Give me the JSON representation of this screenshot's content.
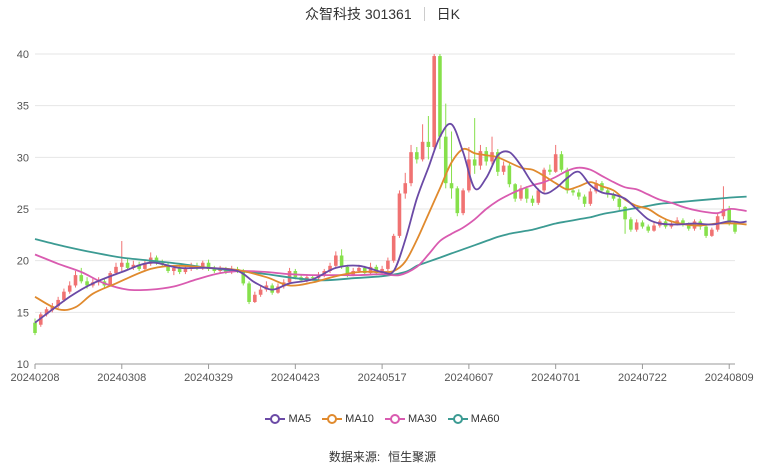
{
  "header": {
    "stock_name": "众智科技 301361",
    "period": "日K"
  },
  "source": {
    "label": "数据来源:",
    "value": "恒生聚源"
  },
  "chart_data": {
    "type": "candlestick",
    "title": "众智科技 301361",
    "ylim": [
      10,
      40
    ],
    "y_ticks": [
      10,
      15,
      20,
      25,
      30,
      35,
      40
    ],
    "x_ticks": [
      {
        "index": 0,
        "label": "20240208"
      },
      {
        "index": 15,
        "label": "20240308"
      },
      {
        "index": 30,
        "label": "20240329"
      },
      {
        "index": 45,
        "label": "20240423"
      },
      {
        "index": 60,
        "label": "20240517"
      },
      {
        "index": 75,
        "label": "20240607"
      },
      {
        "index": 90,
        "label": "20240701"
      },
      {
        "index": 105,
        "label": "20240722"
      },
      {
        "index": 120,
        "label": "20240809"
      }
    ],
    "colors": {
      "up": "#f07272",
      "down": "#86e04b",
      "ma5": "#6b4aa6",
      "ma10": "#e08a2e",
      "ma30": "#d95bb0",
      "ma60": "#3c9b93"
    },
    "candles": [
      [
        14.0,
        13.0,
        14.4,
        12.8
      ],
      [
        13.8,
        14.8,
        15.0,
        13.6
      ],
      [
        14.8,
        15.3,
        15.5,
        14.6
      ],
      [
        15.2,
        15.6,
        15.9,
        15.0
      ],
      [
        15.6,
        16.2,
        16.5,
        15.4
      ],
      [
        16.2,
        17.0,
        17.3,
        16.0
      ],
      [
        17.0,
        17.6,
        18.0,
        16.8
      ],
      [
        17.6,
        18.6,
        19.0,
        17.4
      ],
      [
        18.6,
        18.0,
        19.3,
        17.8
      ],
      [
        18.0,
        17.6,
        18.4,
        17.3
      ],
      [
        17.6,
        17.9,
        18.3,
        17.4
      ],
      [
        17.9,
        18.0,
        18.4,
        17.6
      ],
      [
        18.0,
        17.6,
        18.3,
        17.3
      ],
      [
        17.6,
        18.8,
        19.0,
        17.5
      ],
      [
        18.8,
        19.4,
        19.8,
        18.6
      ],
      [
        19.4,
        19.8,
        21.9,
        19.0
      ],
      [
        19.8,
        19.3,
        20.2,
        19.1
      ],
      [
        19.3,
        19.6,
        20.0,
        19.1
      ],
      [
        19.6,
        19.2,
        19.9,
        19.0
      ],
      [
        19.2,
        19.7,
        20.0,
        19.0
      ],
      [
        19.7,
        20.3,
        20.8,
        19.5
      ],
      [
        20.3,
        19.8,
        20.5,
        19.6
      ],
      [
        19.8,
        19.6,
        20.1,
        19.4
      ],
      [
        19.6,
        19.0,
        19.8,
        18.8
      ],
      [
        19.0,
        19.3,
        19.6,
        18.6
      ],
      [
        19.3,
        18.9,
        19.6,
        18.7
      ],
      [
        18.9,
        19.2,
        19.5,
        18.7
      ],
      [
        19.2,
        19.5,
        19.8,
        19.0
      ],
      [
        19.5,
        19.3,
        19.8,
        19.1
      ],
      [
        19.3,
        19.8,
        20.0,
        19.1
      ],
      [
        19.8,
        19.2,
        20.1,
        19.0
      ],
      [
        19.2,
        19.0,
        19.5,
        18.8
      ],
      [
        19.0,
        19.2,
        19.5,
        18.8
      ],
      [
        19.2,
        18.9,
        19.4,
        18.7
      ],
      [
        18.9,
        19.2,
        19.5,
        18.7
      ],
      [
        19.2,
        19.0,
        19.4,
        18.8
      ],
      [
        19.0,
        17.8,
        19.2,
        17.6
      ],
      [
        17.8,
        16.0,
        18.0,
        15.8
      ],
      [
        16.0,
        16.7,
        17.0,
        15.9
      ],
      [
        16.7,
        17.2,
        17.5,
        16.5
      ],
      [
        17.2,
        17.6,
        18.0,
        17.0
      ],
      [
        17.6,
        16.9,
        17.8,
        16.7
      ],
      [
        16.9,
        17.5,
        17.8,
        16.8
      ],
      [
        17.5,
        17.9,
        18.2,
        17.3
      ],
      [
        17.9,
        19.0,
        19.3,
        17.8
      ],
      [
        19.0,
        18.4,
        19.2,
        18.2
      ],
      [
        18.4,
        18.1,
        18.6,
        17.9
      ],
      [
        18.1,
        18.4,
        18.7,
        17.9
      ],
      [
        18.4,
        18.3,
        18.6,
        18.1
      ],
      [
        18.3,
        18.6,
        18.9,
        18.1
      ],
      [
        18.6,
        19.0,
        19.2,
        18.4
      ],
      [
        19.0,
        19.5,
        19.8,
        18.8
      ],
      [
        19.5,
        20.5,
        20.9,
        19.3
      ],
      [
        20.5,
        19.4,
        21.1,
        19.2
      ],
      [
        19.4,
        18.6,
        19.6,
        18.4
      ],
      [
        18.6,
        19.0,
        19.3,
        18.5
      ],
      [
        19.0,
        19.3,
        19.6,
        18.8
      ],
      [
        19.3,
        18.8,
        19.5,
        18.6
      ],
      [
        18.8,
        19.4,
        19.8,
        18.7
      ],
      [
        19.4,
        18.8,
        19.6,
        18.6
      ],
      [
        18.8,
        19.2,
        19.5,
        18.7
      ],
      [
        19.2,
        20.0,
        20.3,
        19.0
      ],
      [
        20.0,
        22.4,
        22.6,
        19.8
      ],
      [
        22.4,
        26.5,
        26.8,
        22.2
      ],
      [
        26.5,
        27.5,
        28.5,
        26.0
      ],
      [
        27.5,
        30.5,
        31.2,
        27.2
      ],
      [
        30.5,
        29.8,
        31.0,
        29.4
      ],
      [
        29.8,
        31.5,
        33.2,
        29.6
      ],
      [
        31.5,
        31.0,
        34.0,
        29.8
      ],
      [
        31.0,
        39.8,
        40.0,
        30.6
      ],
      [
        39.8,
        32.0,
        40.0,
        30.8
      ],
      [
        32.0,
        27.5,
        35.2,
        27.0
      ],
      [
        27.5,
        27.0,
        32.5,
        26.0
      ],
      [
        27.0,
        24.6,
        27.2,
        24.3
      ],
      [
        24.6,
        26.8,
        27.0,
        24.4
      ],
      [
        26.8,
        29.8,
        31.0,
        26.6
      ],
      [
        29.8,
        29.2,
        33.8,
        28.4
      ],
      [
        29.2,
        30.6,
        31.2,
        28.8
      ],
      [
        30.6,
        29.6,
        31.0,
        29.2
      ],
      [
        29.6,
        30.5,
        32.0,
        29.3
      ],
      [
        30.5,
        28.6,
        30.8,
        28.2
      ],
      [
        28.6,
        29.2,
        29.6,
        28.3
      ],
      [
        29.2,
        27.4,
        29.4,
        27.1
      ],
      [
        27.4,
        26.0,
        27.5,
        25.7
      ],
      [
        26.0,
        27.0,
        27.3,
        25.8
      ],
      [
        27.0,
        26.0,
        27.2,
        25.6
      ],
      [
        26.0,
        25.6,
        26.3,
        25.3
      ],
      [
        25.6,
        26.8,
        27.0,
        25.4
      ],
      [
        26.8,
        28.8,
        29.0,
        26.6
      ],
      [
        28.8,
        28.6,
        29.3,
        28.3
      ],
      [
        28.6,
        30.3,
        31.2,
        28.5
      ],
      [
        30.3,
        28.8,
        30.6,
        28.6
      ],
      [
        28.8,
        26.8,
        29.0,
        26.5
      ],
      [
        26.8,
        26.6,
        27.0,
        26.3
      ],
      [
        26.6,
        26.2,
        26.9,
        25.9
      ],
      [
        26.2,
        25.5,
        26.4,
        25.2
      ],
      [
        25.5,
        26.7,
        27.0,
        25.3
      ],
      [
        26.7,
        27.5,
        27.8,
        26.5
      ],
      [
        27.5,
        26.8,
        27.7,
        26.6
      ],
      [
        26.8,
        26.4,
        27.0,
        26.1
      ],
      [
        26.4,
        26.0,
        26.6,
        25.8
      ],
      [
        26.0,
        25.2,
        26.2,
        24.9
      ],
      [
        25.2,
        24.0,
        25.3,
        22.6
      ],
      [
        24.0,
        23.0,
        24.2,
        22.8
      ],
      [
        23.0,
        23.7,
        24.0,
        22.8
      ],
      [
        23.7,
        23.3,
        23.9,
        23.1
      ],
      [
        23.3,
        22.9,
        23.5,
        22.7
      ],
      [
        22.9,
        23.4,
        23.7,
        22.8
      ],
      [
        23.4,
        23.8,
        24.0,
        23.2
      ],
      [
        23.8,
        23.3,
        24.0,
        23.1
      ],
      [
        23.3,
        23.6,
        23.9,
        23.1
      ],
      [
        23.6,
        23.9,
        24.2,
        23.4
      ],
      [
        23.9,
        23.5,
        24.1,
        23.3
      ],
      [
        23.5,
        23.1,
        23.7,
        22.9
      ],
      [
        23.1,
        23.8,
        24.0,
        22.9
      ],
      [
        23.8,
        23.3,
        24.0,
        23.0
      ],
      [
        23.3,
        22.4,
        23.5,
        22.2
      ],
      [
        22.4,
        23.0,
        23.2,
        22.3
      ],
      [
        23.0,
        24.3,
        24.6,
        22.8
      ],
      [
        24.3,
        25.0,
        27.2,
        24.0
      ],
      [
        25.0,
        23.6,
        25.3,
        23.4
      ],
      [
        23.6,
        22.8,
        23.8,
        22.6
      ]
    ],
    "ma5": [
      [
        0,
        14.0
      ],
      [
        6,
        16.5
      ],
      [
        10,
        17.8
      ],
      [
        15,
        18.9
      ],
      [
        20,
        19.8
      ],
      [
        25,
        19.3
      ],
      [
        30,
        19.3
      ],
      [
        35,
        19.0
      ],
      [
        38,
        17.9
      ],
      [
        41,
        17.2
      ],
      [
        44,
        17.8
      ],
      [
        48,
        18.2
      ],
      [
        52,
        19.3
      ],
      [
        56,
        19.5
      ],
      [
        60,
        18.9
      ],
      [
        62,
        19.0
      ],
      [
        64,
        22.0
      ],
      [
        66,
        26.0
      ],
      [
        68,
        29.0
      ],
      [
        70,
        32.0
      ],
      [
        72,
        33.2
      ],
      [
        74,
        30.5
      ],
      [
        76,
        27.0
      ],
      [
        78,
        28.0
      ],
      [
        80,
        30.2
      ],
      [
        82,
        30.5
      ],
      [
        84,
        29.2
      ],
      [
        86,
        27.5
      ],
      [
        88,
        26.5
      ],
      [
        90,
        27.0
      ],
      [
        92,
        28.0
      ],
      [
        94,
        28.6
      ],
      [
        96,
        27.3
      ],
      [
        98,
        26.6
      ],
      [
        100,
        26.4
      ],
      [
        102,
        26.0
      ],
      [
        104,
        25.0
      ],
      [
        106,
        24.0
      ],
      [
        108,
        23.6
      ],
      [
        111,
        23.5
      ],
      [
        114,
        23.6
      ],
      [
        117,
        23.5
      ],
      [
        120,
        23.8
      ],
      [
        122,
        23.7
      ],
      [
        123,
        23.8
      ]
    ],
    "ma10": [
      [
        0,
        16.5
      ],
      [
        4,
        15.3
      ],
      [
        7,
        15.5
      ],
      [
        10,
        16.8
      ],
      [
        14,
        17.8
      ],
      [
        20,
        19.2
      ],
      [
        25,
        19.5
      ],
      [
        30,
        19.3
      ],
      [
        35,
        19.1
      ],
      [
        40,
        18.4
      ],
      [
        44,
        17.6
      ],
      [
        48,
        17.9
      ],
      [
        52,
        18.5
      ],
      [
        56,
        18.9
      ],
      [
        60,
        18.9
      ],
      [
        62,
        19.0
      ],
      [
        64,
        19.9
      ],
      [
        66,
        22.0
      ],
      [
        68,
        24.5
      ],
      [
        70,
        27.0
      ],
      [
        72,
        29.5
      ],
      [
        74,
        30.8
      ],
      [
        76,
        30.4
      ],
      [
        78,
        30.2
      ],
      [
        80,
        30.0
      ],
      [
        84,
        29.0
      ],
      [
        86,
        28.8
      ],
      [
        88,
        28.2
      ],
      [
        90,
        27.5
      ],
      [
        92,
        26.9
      ],
      [
        94,
        27.2
      ],
      [
        96,
        27.6
      ],
      [
        98,
        27.2
      ],
      [
        100,
        26.8
      ],
      [
        102,
        25.9
      ],
      [
        104,
        25.3
      ],
      [
        106,
        25.0
      ],
      [
        108,
        24.3
      ],
      [
        110,
        23.8
      ],
      [
        114,
        23.4
      ],
      [
        118,
        23.6
      ],
      [
        121,
        23.6
      ],
      [
        123,
        23.5
      ]
    ],
    "ma30": [
      [
        0,
        20.6
      ],
      [
        4,
        19.7
      ],
      [
        8,
        18.9
      ],
      [
        12,
        17.8
      ],
      [
        16,
        17.2
      ],
      [
        20,
        17.2
      ],
      [
        24,
        17.5
      ],
      [
        28,
        18.2
      ],
      [
        32,
        18.8
      ],
      [
        36,
        19.0
      ],
      [
        40,
        18.9
      ],
      [
        44,
        18.7
      ],
      [
        48,
        18.6
      ],
      [
        52,
        18.6
      ],
      [
        56,
        18.6
      ],
      [
        60,
        18.7
      ],
      [
        63,
        18.6
      ],
      [
        66,
        19.4
      ],
      [
        68,
        20.6
      ],
      [
        70,
        21.9
      ],
      [
        72,
        22.6
      ],
      [
        74,
        23.2
      ],
      [
        76,
        24.0
      ],
      [
        78,
        25.0
      ],
      [
        80,
        25.8
      ],
      [
        82,
        26.4
      ],
      [
        84,
        26.9
      ],
      [
        86,
        27.3
      ],
      [
        88,
        27.6
      ],
      [
        90,
        28.1
      ],
      [
        92,
        28.7
      ],
      [
        94,
        29.0
      ],
      [
        96,
        28.8
      ],
      [
        98,
        28.2
      ],
      [
        100,
        27.6
      ],
      [
        102,
        27.1
      ],
      [
        104,
        26.9
      ],
      [
        106,
        26.4
      ],
      [
        108,
        25.9
      ],
      [
        110,
        25.6
      ],
      [
        112,
        25.2
      ],
      [
        114,
        24.9
      ],
      [
        116,
        24.7
      ],
      [
        118,
        24.6
      ],
      [
        120,
        25.0
      ],
      [
        122,
        24.9
      ],
      [
        123,
        24.8
      ]
    ],
    "ma60": [
      [
        0,
        22.1
      ],
      [
        5,
        21.4
      ],
      [
        10,
        20.8
      ],
      [
        15,
        20.3
      ],
      [
        20,
        20.0
      ],
      [
        25,
        19.7
      ],
      [
        30,
        19.3
      ],
      [
        35,
        19.0
      ],
      [
        40,
        18.7
      ],
      [
        45,
        18.3
      ],
      [
        50,
        18.1
      ],
      [
        55,
        18.3
      ],
      [
        60,
        18.5
      ],
      [
        64,
        18.9
      ],
      [
        66,
        19.5
      ],
      [
        68,
        19.9
      ],
      [
        70,
        20.3
      ],
      [
        72,
        20.7
      ],
      [
        74,
        21.1
      ],
      [
        76,
        21.5
      ],
      [
        78,
        21.9
      ],
      [
        80,
        22.3
      ],
      [
        82,
        22.6
      ],
      [
        84,
        22.8
      ],
      [
        86,
        23.0
      ],
      [
        88,
        23.3
      ],
      [
        90,
        23.6
      ],
      [
        92,
        23.8
      ],
      [
        94,
        24.0
      ],
      [
        96,
        24.2
      ],
      [
        98,
        24.5
      ],
      [
        100,
        24.7
      ],
      [
        102,
        24.9
      ],
      [
        104,
        25.1
      ],
      [
        106,
        25.3
      ],
      [
        108,
        25.5
      ],
      [
        110,
        25.6
      ],
      [
        112,
        25.7
      ],
      [
        114,
        25.8
      ],
      [
        116,
        25.9
      ],
      [
        118,
        26.0
      ],
      [
        120,
        26.1
      ],
      [
        123,
        26.2
      ]
    ],
    "legend": [
      {
        "name": "MA5",
        "color": "#6b4aa6"
      },
      {
        "name": "MA10",
        "color": "#e08a2e"
      },
      {
        "name": "MA30",
        "color": "#d95bb0"
      },
      {
        "name": "MA60",
        "color": "#3c9b93"
      }
    ]
  }
}
